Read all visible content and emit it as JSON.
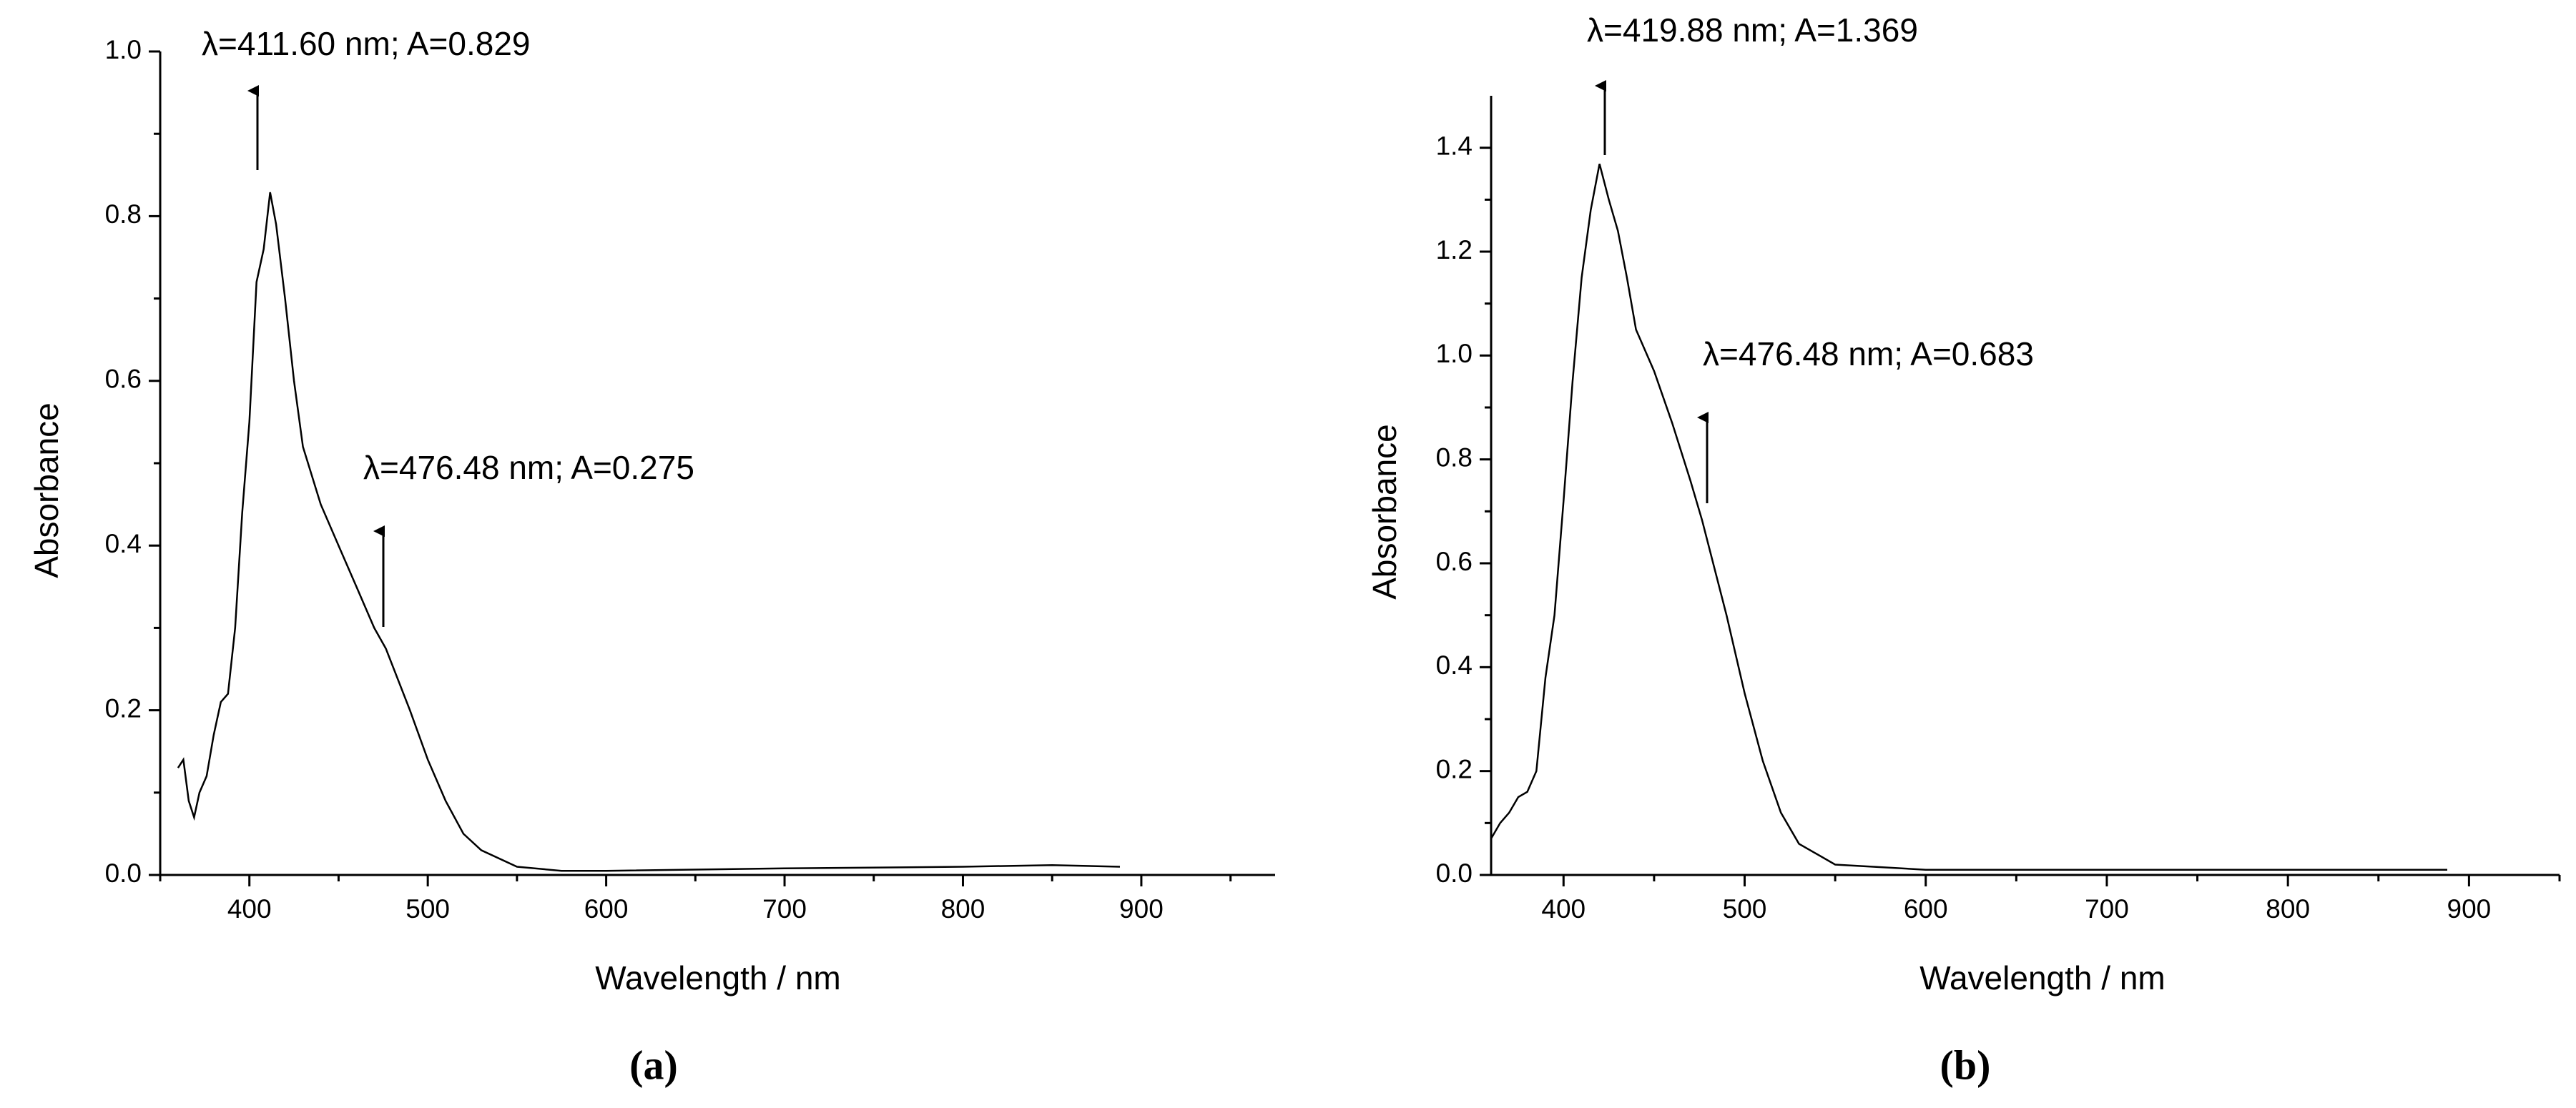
{
  "chart_data": [
    {
      "type": "line",
      "panel_label": "(a)",
      "x_label": "Wavelength / nm",
      "y_label": "Absorbance",
      "x": [
        360,
        363,
        366,
        369,
        372,
        376,
        380,
        384,
        388,
        392,
        396,
        400,
        404,
        408,
        411.6,
        415,
        420,
        425,
        430,
        440,
        450,
        460,
        470,
        476.48,
        490,
        500,
        510,
        520,
        530,
        550,
        575,
        600,
        700,
        800,
        850,
        888
      ],
      "series": [
        {
          "color": "#000000",
          "values": [
            0.13,
            0.14,
            0.09,
            0.07,
            0.1,
            0.12,
            0.17,
            0.21,
            0.22,
            0.3,
            0.44,
            0.55,
            0.72,
            0.76,
            0.829,
            0.79,
            0.7,
            0.6,
            0.52,
            0.45,
            0.4,
            0.35,
            0.3,
            0.275,
            0.2,
            0.14,
            0.09,
            0.05,
            0.03,
            0.01,
            0.005,
            0.005,
            0.008,
            0.01,
            0.012,
            0.01
          ]
        }
      ],
      "xlim": [
        350,
        975
      ],
      "xticks": [
        400,
        500,
        600,
        700,
        800,
        900
      ],
      "ylim": [
        0,
        1.0
      ],
      "yticks": [
        {
          "value": 0,
          "label": "0.0"
        },
        0.2,
        0.4,
        0.6,
        0.8,
        {
          "value": 1.0,
          "label": "1.0"
        }
      ],
      "annotations": [
        "λ=411.60 nm; A=0.829",
        "λ=476.48 nm; A=0.275"
      ]
    },
    {
      "type": "line",
      "panel_label": "(b)",
      "x_label": "Wavelength / nm",
      "y_label": "Absorbance",
      "x": [
        360,
        365,
        370,
        375,
        380,
        385,
        390,
        395,
        400,
        405,
        410,
        415,
        419.88,
        425,
        430,
        435,
        440,
        450,
        460,
        470,
        476.48,
        490,
        500,
        510,
        520,
        530,
        550,
        600,
        700,
        800,
        888
      ],
      "series": [
        {
          "color": "#000000",
          "values": [
            0.07,
            0.1,
            0.12,
            0.15,
            0.16,
            0.2,
            0.38,
            0.5,
            0.72,
            0.95,
            1.15,
            1.28,
            1.369,
            1.3,
            1.24,
            1.15,
            1.05,
            0.97,
            0.87,
            0.76,
            0.683,
            0.5,
            0.35,
            0.22,
            0.12,
            0.06,
            0.02,
            0.01,
            0.01,
            0.01,
            0.01
          ]
        }
      ],
      "xlim": [
        360,
        950
      ],
      "xticks": [
        400,
        500,
        600,
        700,
        800,
        900
      ],
      "ylim": [
        0,
        1.5
      ],
      "yticks": [
        {
          "value": 0,
          "label": "0.0"
        },
        0.2,
        0.4,
        0.6,
        0.8,
        {
          "value": 1.0,
          "label": "1.0"
        },
        1.2,
        1.4
      ],
      "annotations": [
        "λ=419.88 nm; A=1.369",
        "λ=476.48 nm; A=0.683"
      ]
    }
  ]
}
